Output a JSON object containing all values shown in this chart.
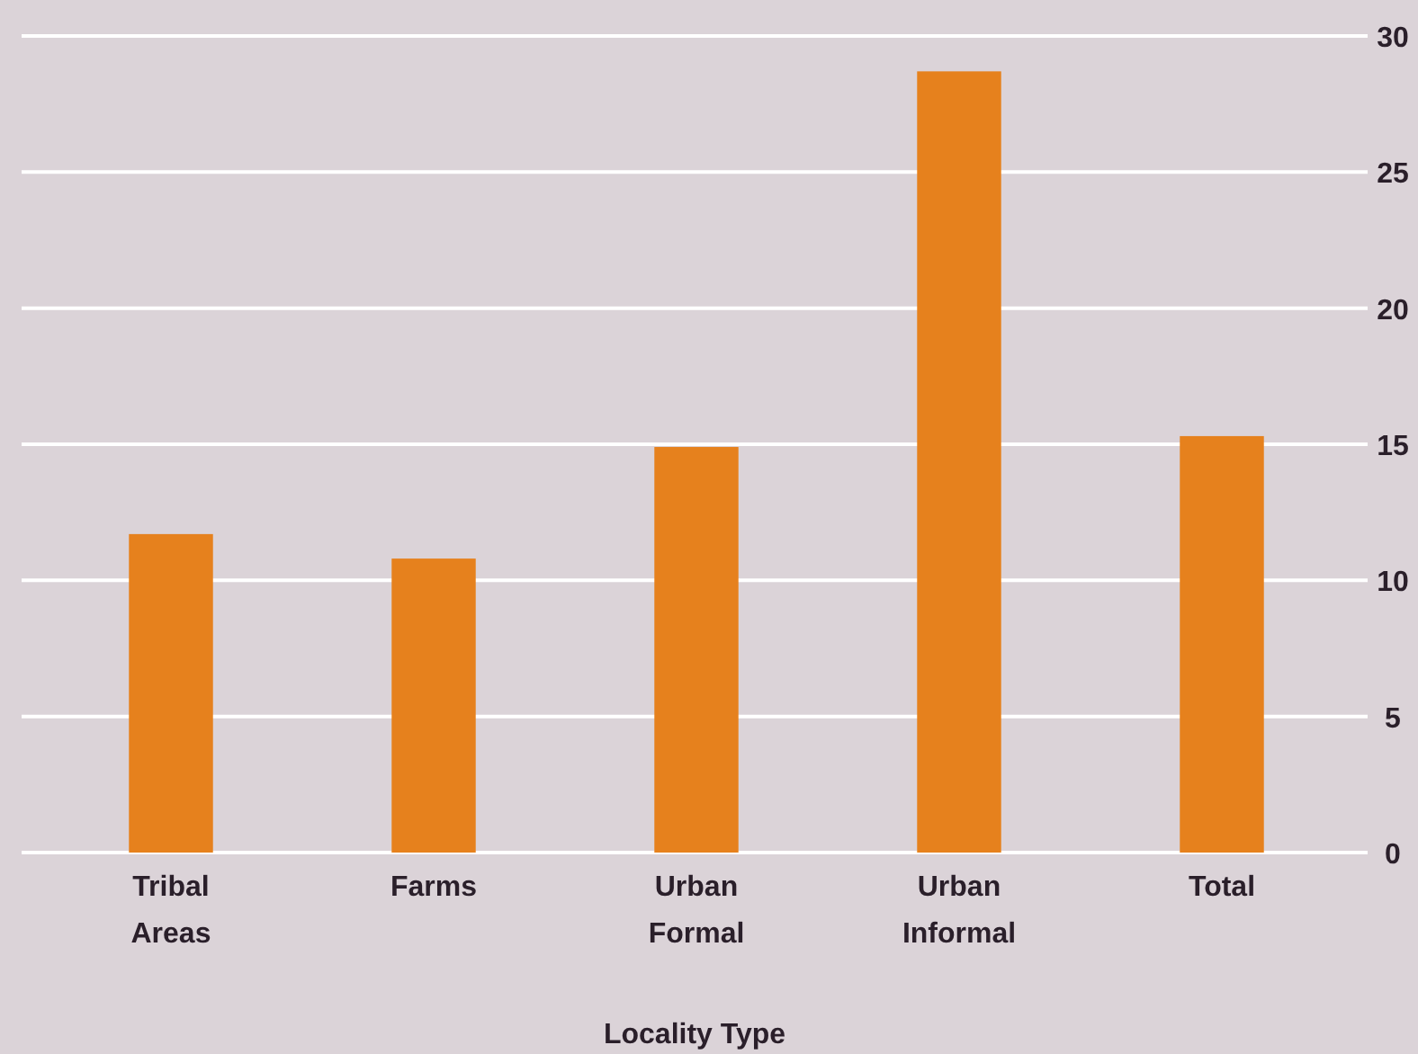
{
  "chart_data": {
    "type": "bar",
    "xlabel": "Locality Type",
    "categories": [
      "Tribal Areas",
      "Farms",
      "Urban Formal",
      "Urban Informal",
      "Total"
    ],
    "values": [
      11.7,
      10.8,
      14.9,
      28.7,
      15.3
    ],
    "color": "#e6811d",
    "ylim": [
      0,
      30
    ],
    "yticks": [
      0,
      5,
      10,
      15,
      20,
      25,
      30
    ],
    "grid": "y"
  }
}
